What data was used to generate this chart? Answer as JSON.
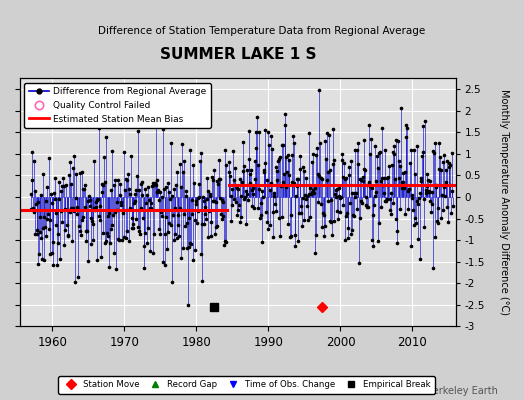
{
  "title": "SUMMER LAKE 1 S",
  "subtitle": "Difference of Station Temperature Data from Regional Average",
  "ylabel_right": "Monthly Temperature Anomaly Difference (°C)",
  "xlim": [
    1955.5,
    2016
  ],
  "ylim": [
    -3,
    2.75
  ],
  "yticks": [
    -3,
    -2.5,
    -2,
    -1.5,
    -1,
    -0.5,
    0,
    0.5,
    1,
    1.5,
    2,
    2.5
  ],
  "xticks": [
    1960,
    1970,
    1980,
    1990,
    2000,
    2010
  ],
  "bias_segments": [
    {
      "x_start": 1955.5,
      "x_end": 1984.3,
      "bias": -0.3
    },
    {
      "x_start": 1984.5,
      "x_end": 2016,
      "bias": 0.27
    }
  ],
  "empirical_break_x": 1982.5,
  "empirical_break_y": -2.55,
  "station_move_x": 1997.5,
  "station_move_y": -2.55,
  "line_color": "#0000cc",
  "dot_color": "#000000",
  "bias_color": "#ff0000",
  "plot_bg": "#e0e0e0",
  "fig_bg": "#d0d0d0",
  "grid_color": "#ffffff",
  "watermark": "Berkeley Earth",
  "seed": 42
}
